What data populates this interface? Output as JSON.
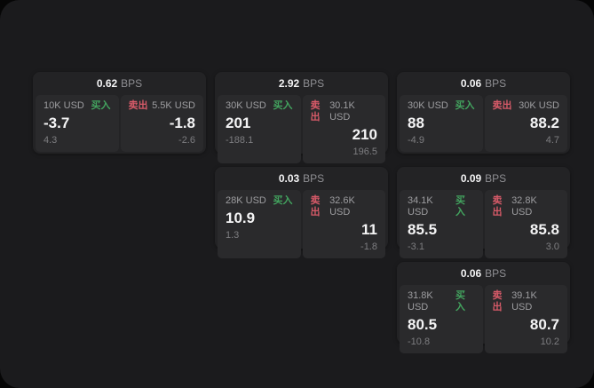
{
  "labels": {
    "bps_unit": "BPS",
    "buy": "买入",
    "sell": "卖出"
  },
  "colors": {
    "page_bg": "#1b1b1d",
    "card_bg": "#232325",
    "panel_bg": "#2a2a2c",
    "buy_green": "#43a45f",
    "sell_red": "#d65a68",
    "primary_text": "#f4f4f5",
    "muted_text": "#9d9da0"
  },
  "cards": [
    {
      "bps": "0.62",
      "buy": {
        "amount": "10K USD",
        "price": "-3.7",
        "sub": "4.3"
      },
      "sell": {
        "amount": "5.5K USD",
        "price": "-1.8",
        "sub": "-2.6"
      }
    },
    {
      "bps": "2.92",
      "buy": {
        "amount": "30K USD",
        "price": "201",
        "sub": "-188.1"
      },
      "sell": {
        "amount": "30.1K USD",
        "price": "210",
        "sub": "196.5"
      }
    },
    {
      "bps": "0.06",
      "buy": {
        "amount": "30K USD",
        "price": "88",
        "sub": "-4.9"
      },
      "sell": {
        "amount": "30K USD",
        "price": "88.2",
        "sub": "4.7"
      }
    },
    {
      "bps": "0.03",
      "buy": {
        "amount": "28K USD",
        "price": "10.9",
        "sub": "1.3"
      },
      "sell": {
        "amount": "32.6K USD",
        "price": "11",
        "sub": "-1.8"
      }
    },
    {
      "bps": "0.09",
      "buy": {
        "amount": "34.1K USD",
        "price": "85.5",
        "sub": "-3.1"
      },
      "sell": {
        "amount": "32.8K USD",
        "price": "85.8",
        "sub": "3.0"
      }
    },
    {
      "bps": "0.06",
      "buy": {
        "amount": "31.8K USD",
        "price": "80.5",
        "sub": "-10.8"
      },
      "sell": {
        "amount": "39.1K USD",
        "price": "80.7",
        "sub": "10.2"
      }
    }
  ]
}
